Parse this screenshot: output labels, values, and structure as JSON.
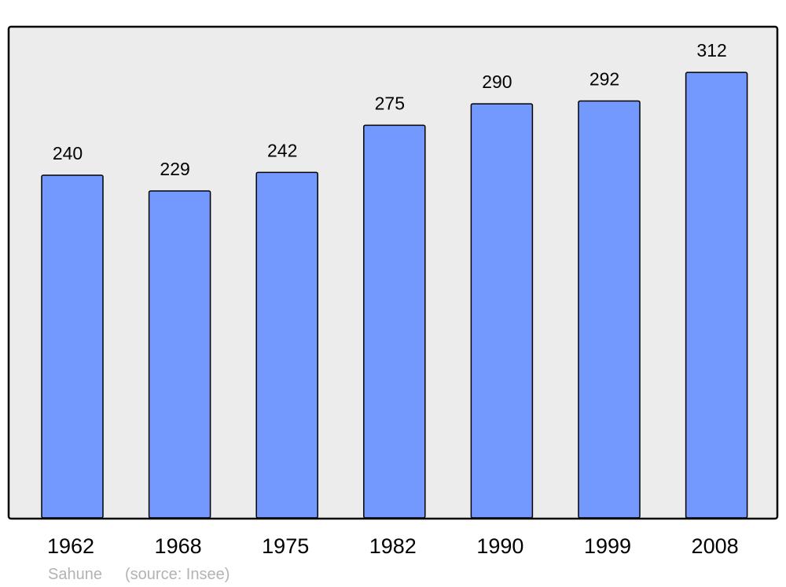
{
  "chart_data": {
    "type": "bar",
    "categories": [
      "1962",
      "1968",
      "1975",
      "1982",
      "1990",
      "1999",
      "2008"
    ],
    "values": [
      240,
      229,
      242,
      275,
      290,
      292,
      312
    ],
    "title": "",
    "xlabel": "",
    "ylabel": "",
    "ylim": [
      0,
      344
    ],
    "grid": false,
    "data_labels": true,
    "colors": {
      "bar": "#7399ff",
      "plot_background": "#ececec",
      "stroke": "#000000"
    }
  },
  "caption": {
    "place": "Sahune",
    "source": "(source: Insee)"
  }
}
